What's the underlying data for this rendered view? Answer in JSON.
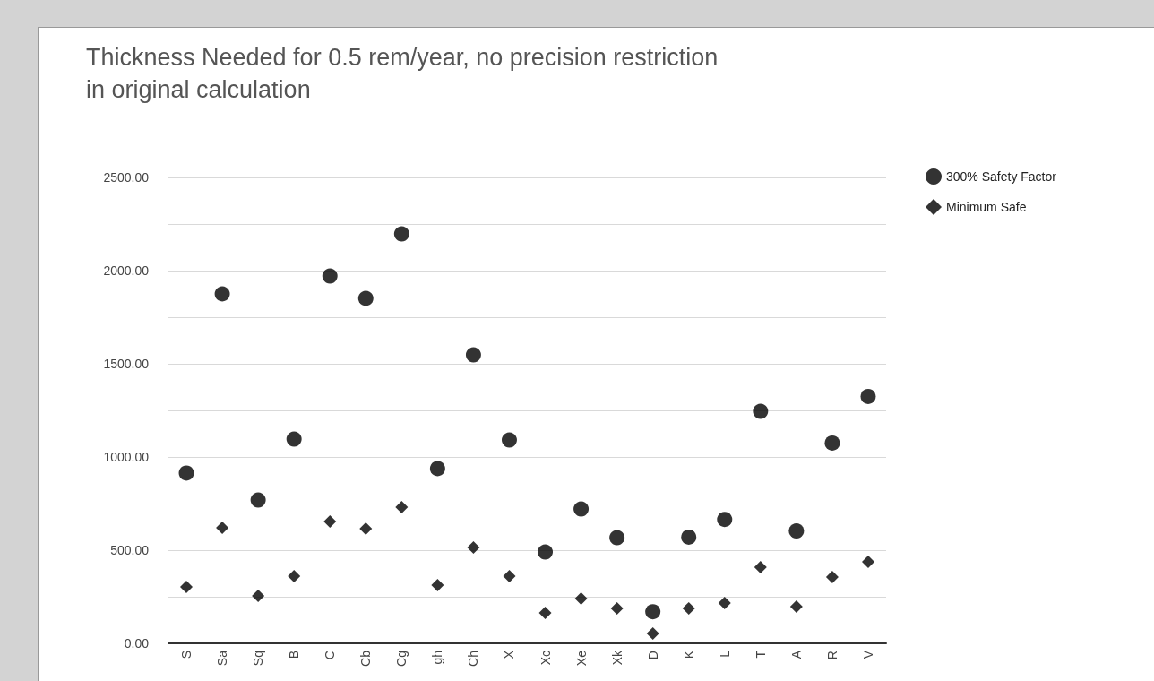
{
  "chart_data": {
    "type": "scatter",
    "title": "Thickness Needed for 0.5 rem/year, no precision restriction in original calculation",
    "categories": [
      "S",
      "Sa",
      "Sq",
      "B",
      "C",
      "Cb",
      "Cg",
      "gh",
      "Ch",
      "X",
      "Xc",
      "Xe",
      "Xk",
      "D",
      "K",
      "L",
      "T",
      "A",
      "R",
      "V"
    ],
    "series": [
      {
        "name": "300% Safety Factor",
        "color": "#000000",
        "marker": "circle",
        "values": [
          914,
          1875,
          769,
          1096,
          1971,
          1851,
          2197,
          938,
          1548,
          1091,
          490,
          721,
          567,
          170,
          570,
          665,
          1245,
          603,
          1075,
          1325
        ]
      },
      {
        "name": "Minimum Safe",
        "color": "#000000",
        "marker": "diamond",
        "values": [
          303,
          620,
          255,
          361,
          654,
          615,
          731,
          313,
          514,
          361,
          163,
          240,
          188,
          53,
          188,
          216,
          409,
          197,
          356,
          438
        ]
      }
    ],
    "ylim": [
      0,
      2500
    ],
    "yticks": [
      {
        "value": 0,
        "label": "0.00"
      },
      {
        "value": 250,
        "label": null
      },
      {
        "value": 500,
        "label": "500.00"
      },
      {
        "value": 750,
        "label": null
      },
      {
        "value": 1000,
        "label": "1000.00"
      },
      {
        "value": 1250,
        "label": null
      },
      {
        "value": 1500,
        "label": "1500.00"
      },
      {
        "value": 1750,
        "label": null
      },
      {
        "value": 2000,
        "label": "2000.00"
      },
      {
        "value": 2250,
        "label": null
      },
      {
        "value": 2500,
        "label": "2500.00"
      }
    ],
    "grid": "y",
    "legend": "top right"
  }
}
